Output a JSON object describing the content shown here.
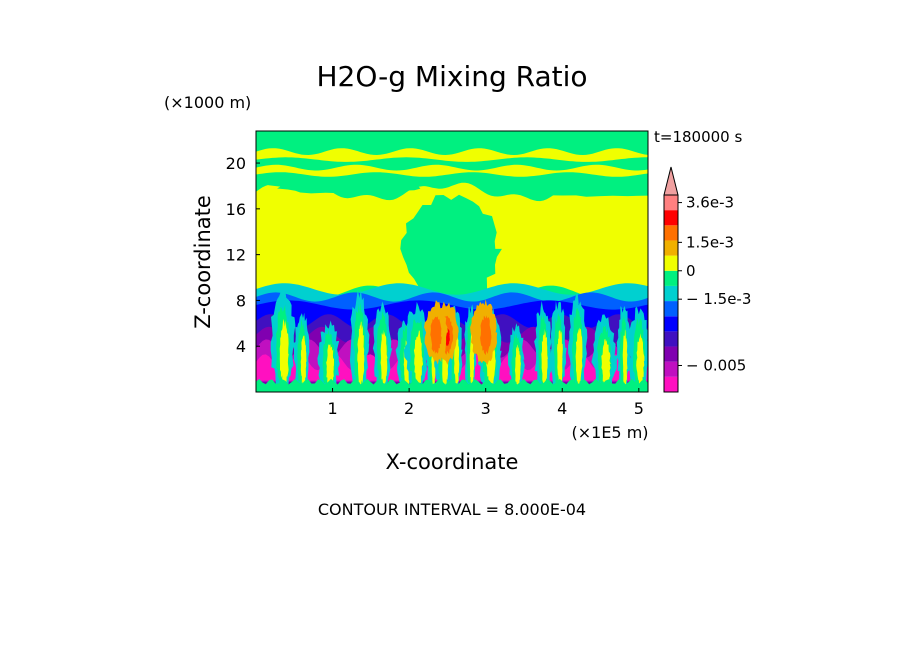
{
  "chart_data": {
    "type": "heatmap",
    "title": "H2O-g Mixing Ratio",
    "xlabel": "X-coordinate",
    "ylabel": "Z-coordinate",
    "x_unit": "(×1E5 m)",
    "y_unit": "(×1000 m)",
    "time_label": "t=180000 s",
    "footer": "CONTOUR INTERVAL = 8.000E-04",
    "x_ticks": [
      "1",
      "2",
      "3",
      "4",
      "5"
    ],
    "x_tick_values": [
      1,
      2,
      3,
      4,
      5
    ],
    "y_ticks": [
      "4",
      "8",
      "12",
      "16",
      "20"
    ],
    "y_tick_values": [
      4,
      8,
      12,
      16,
      20
    ],
    "xlim": [
      0,
      5.12
    ],
    "ylim": [
      0,
      22.8
    ],
    "contour_interval": 0.0008,
    "colorbar": {
      "levels": [
        -0.0056,
        -0.0048,
        -0.004,
        -0.0032,
        -0.0024,
        -0.0016,
        -0.0008,
        0,
        0.0008,
        0.0016,
        0.0024,
        0.0032,
        0.004
      ],
      "colors": [
        "#ff10c0",
        "#c010c0",
        "#8000b0",
        "#4010c0",
        "#0000ff",
        "#0060ff",
        "#00d0d0",
        "#00f080",
        "#f0ff00",
        "#f0b000",
        "#ff7000",
        "#ff0000",
        "#ff8080",
        "#f0a0a0"
      ],
      "labels": [
        "3.6e-3",
        "1.5e-3",
        "0",
        "− 1.5e-3",
        "− 0.005"
      ],
      "label_values": [
        0.0036,
        0.0015,
        0,
        -0.0015,
        -0.005
      ]
    },
    "fill": {
      "colors": {
        "magenta": "#ff10c0",
        "purple": "#c010c0",
        "violet": "#8000b0",
        "navy": "#4010c0",
        "blue": "#0000ff",
        "lightblue": "#0060ff",
        "cyan": "#00d0d0",
        "green": "#00f080",
        "yellow": "#f0ff00",
        "orange": "#f0b000",
        "darkorange": "#ff7000",
        "red": "#ff0000"
      }
    }
  }
}
